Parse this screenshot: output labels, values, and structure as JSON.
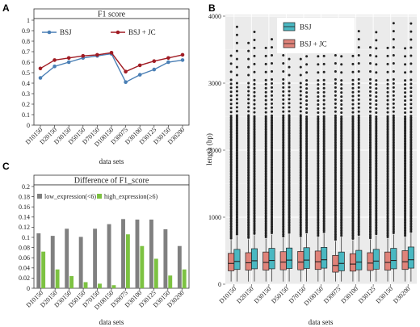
{
  "chart_data": [
    {
      "panel": "A",
      "type": "line",
      "title": "F1 score",
      "xlabel": "data sets",
      "ylabel": "",
      "ylim": [
        0,
        1
      ],
      "yticks": [
        0,
        0.1,
        0.2,
        0.3,
        0.4,
        0.5,
        0.6,
        0.7,
        0.8,
        0.9,
        1
      ],
      "categories": [
        "D10150",
        "D20150",
        "D30150",
        "D50150",
        "D70150",
        "D100150",
        "D30075",
        "D30100",
        "D30125",
        "D30150",
        "D30200"
      ],
      "series": [
        {
          "name": "BSJ",
          "color": "#4a7fb5",
          "values": [
            0.45,
            0.56,
            0.6,
            0.64,
            0.66,
            0.68,
            0.41,
            0.48,
            0.53,
            0.6,
            0.62
          ]
        },
        {
          "name": "BSJ + JC",
          "color": "#a01c24",
          "values": [
            0.54,
            0.62,
            0.64,
            0.66,
            0.67,
            0.69,
            0.51,
            0.57,
            0.61,
            0.64,
            0.67
          ]
        }
      ],
      "legend_position": "top"
    },
    {
      "panel": "B",
      "type": "box",
      "title": "",
      "xlabel": "data sets",
      "ylabel": "length (bp)",
      "ylim": [
        0,
        4000
      ],
      "yticks": [
        0,
        1000,
        2000,
        3000,
        4000
      ],
      "categories": [
        "D10150",
        "D20150",
        "D30150",
        "D50150",
        "D70150",
        "D100150",
        "D30075",
        "D30100",
        "D30125",
        "D30150",
        "D30200"
      ],
      "series": [
        {
          "name": "BSJ",
          "color": "#4ab8c2",
          "boxes": [
            {
              "q1": 220,
              "median": 340,
              "q3": 520,
              "whisker_low": 40,
              "whisker_high": 720
            },
            {
              "q1": 230,
              "median": 350,
              "q3": 530,
              "whisker_low": 40,
              "whisker_high": 730
            },
            {
              "q1": 230,
              "median": 355,
              "q3": 535,
              "whisker_low": 40,
              "whisker_high": 740
            },
            {
              "q1": 235,
              "median": 360,
              "q3": 540,
              "whisker_low": 40,
              "whisker_high": 745
            },
            {
              "q1": 235,
              "median": 360,
              "q3": 545,
              "whisker_low": 40,
              "whisker_high": 750
            },
            {
              "q1": 240,
              "median": 365,
              "q3": 550,
              "whisker_low": 40,
              "whisker_high": 755
            },
            {
              "q1": 200,
              "median": 310,
              "q3": 480,
              "whisker_low": 40,
              "whisker_high": 700
            },
            {
              "q1": 215,
              "median": 330,
              "q3": 505,
              "whisker_low": 40,
              "whisker_high": 715
            },
            {
              "q1": 225,
              "median": 345,
              "q3": 520,
              "whisker_low": 40,
              "whisker_high": 725
            },
            {
              "q1": 230,
              "median": 355,
              "q3": 535,
              "whisker_low": 40,
              "whisker_high": 740
            },
            {
              "q1": 240,
              "median": 365,
              "q3": 555,
              "whisker_low": 40,
              "whisker_high": 760
            }
          ],
          "outlier_max": [
            3900,
            3850,
            3750,
            3800,
            3950,
            3900,
            3700,
            3850,
            3850,
            3900,
            3900
          ]
        },
        {
          "name": "BSJ + JC",
          "color": "#e0837a",
          "boxes": [
            {
              "q1": 200,
              "median": 310,
              "q3": 460,
              "whisker_low": 40,
              "whisker_high": 660
            },
            {
              "q1": 210,
              "median": 320,
              "q3": 470,
              "whisker_low": 40,
              "whisker_high": 670
            },
            {
              "q1": 210,
              "median": 325,
              "q3": 480,
              "whisker_low": 40,
              "whisker_high": 680
            },
            {
              "q1": 215,
              "median": 330,
              "q3": 485,
              "whisker_low": 40,
              "whisker_high": 690
            },
            {
              "q1": 215,
              "median": 330,
              "q3": 490,
              "whisker_low": 40,
              "whisker_high": 695
            },
            {
              "q1": 220,
              "median": 335,
              "q3": 495,
              "whisker_low": 40,
              "whisker_high": 700
            },
            {
              "q1": 180,
              "median": 280,
              "q3": 430,
              "whisker_low": 40,
              "whisker_high": 640
            },
            {
              "q1": 195,
              "median": 300,
              "q3": 455,
              "whisker_low": 40,
              "whisker_high": 655
            },
            {
              "q1": 205,
              "median": 315,
              "q3": 470,
              "whisker_low": 40,
              "whisker_high": 665
            },
            {
              "q1": 210,
              "median": 325,
              "q3": 480,
              "whisker_low": 40,
              "whisker_high": 680
            },
            {
              "q1": 220,
              "median": 335,
              "q3": 500,
              "whisker_low": 40,
              "whisker_high": 700
            }
          ],
          "outlier_max": [
            3500,
            3600,
            3550,
            3450,
            3600,
            3650,
            3500,
            3500,
            3550,
            3550,
            3600
          ]
        }
      ],
      "legend_position": "top-left inside"
    },
    {
      "panel": "C",
      "type": "bar",
      "title": "Difference of F1_score",
      "xlabel": "data sets",
      "ylabel": "",
      "ylim": [
        0,
        0.2
      ],
      "yticks": [
        0,
        0.02,
        0.04,
        0.06,
        0.08,
        0.1,
        0.12,
        0.14,
        0.16,
        0.18,
        0.2
      ],
      "categories": [
        "D10150",
        "D20150",
        "D30150",
        "D50150",
        "D70150",
        "D100150",
        "D30075",
        "D30100",
        "D30125",
        "D30150",
        "D30200"
      ],
      "series": [
        {
          "name": "low_expression(<6)",
          "color": "#808080",
          "values": [
            0.108,
            0.103,
            0.117,
            0.101,
            0.117,
            0.126,
            0.136,
            0.135,
            0.135,
            0.116,
            0.083
          ]
        },
        {
          "name": "high_expression(≥6)",
          "color": "#7dc242",
          "values": [
            0.072,
            0.037,
            0.024,
            0.012,
            0.009,
            0.006,
            0.106,
            0.083,
            0.058,
            0.025,
            0.037
          ]
        }
      ],
      "legend_position": "top"
    }
  ]
}
